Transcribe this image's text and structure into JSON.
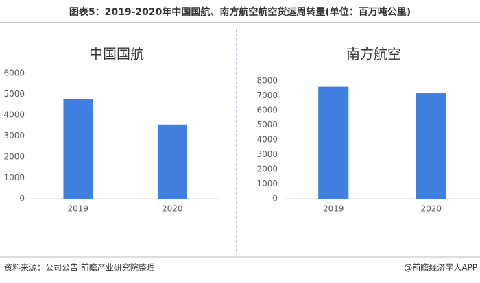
{
  "title": "图表5：2019-2020年中国国航、南方航空航空货运周转量(单位：百万吨公里)",
  "source": "资料来源：公司公告 前瞻产业研究院整理",
  "credit": "@前瞻经济学人APP",
  "chart_data": [
    {
      "type": "bar",
      "title": "中国国航",
      "categories": [
        "2019",
        "2020"
      ],
      "values": [
        4780,
        3550
      ],
      "color": "#3f7fe0",
      "ylim": [
        0,
        6000
      ],
      "yticks": [
        0,
        1000,
        2000,
        3000,
        4000,
        5000,
        6000
      ]
    },
    {
      "type": "bar",
      "title": "南方航空",
      "categories": [
        "2019",
        "2020"
      ],
      "values": [
        7600,
        7200
      ],
      "color": "#3f7fe0",
      "ylim": [
        0,
        8000
      ],
      "yticks": [
        0,
        1000,
        2000,
        3000,
        4000,
        5000,
        6000,
        7000,
        8000
      ]
    }
  ]
}
